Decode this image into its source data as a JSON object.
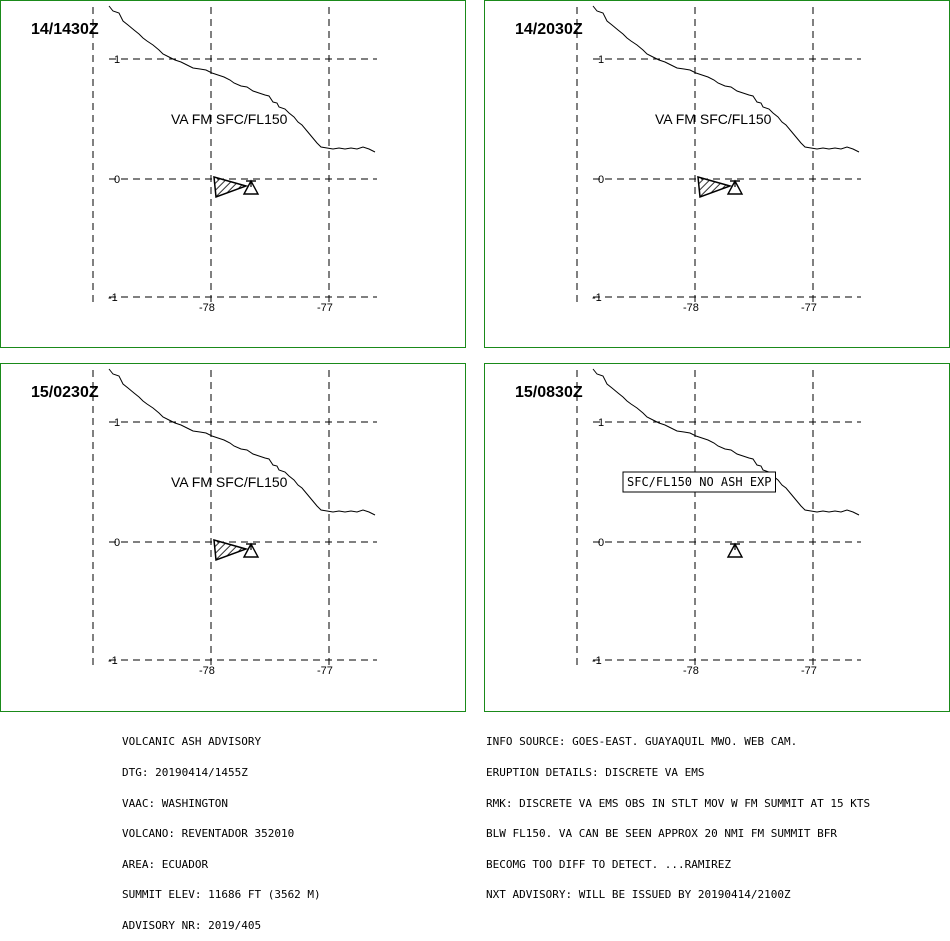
{
  "panels": [
    {
      "time": "14/1430Z",
      "label": "VA FM SFC/FL150",
      "label_boxed": false,
      "ash_area": true
    },
    {
      "time": "14/2030Z",
      "label": "VA FM SFC/FL150",
      "label_boxed": false,
      "ash_area": true
    },
    {
      "time": "15/0230Z",
      "label": "VA FM SFC/FL150",
      "label_boxed": false,
      "ash_area": true
    },
    {
      "time": "15/0830Z",
      "label": "SFC/FL150 NO ASH EXP",
      "label_boxed": true,
      "ash_area": false
    }
  ],
  "axes": {
    "lat_ticks": [
      "1",
      "0",
      "-1"
    ],
    "lon_ticks": [
      "-78",
      "-77"
    ]
  },
  "colors": {
    "panel_border": "#1a8a1a",
    "lines": "#000000"
  },
  "advisory_left": [
    "VOLCANIC ASH ADVISORY",
    "DTG: 20190414/1455Z",
    "VAAC: WASHINGTON",
    "VOLCANO: REVENTADOR 352010",
    "AREA: ECUADOR",
    "SUMMIT ELEV: 11686 FT (3562 M)",
    "ADVISORY NR: 2019/405"
  ],
  "advisory_right": [
    "INFO SOURCE: GOES-EAST. GUAYAQUIL MWO. WEB CAM.",
    "ERUPTION DETAILS: DISCRETE VA EMS",
    "RMK: DISCRETE VA EMS OBS IN STLT MOV W FM SUMMIT AT 15 KTS",
    "BLW FL150. VA CAN BE SEEN APPROX 20 NMI FM SUMMIT BFR",
    "BECOMG TOO DIFF TO DETECT. ...RAMIREZ",
    "NXT ADVISORY: WILL BE ISSUED BY 20190414/2100Z"
  ]
}
